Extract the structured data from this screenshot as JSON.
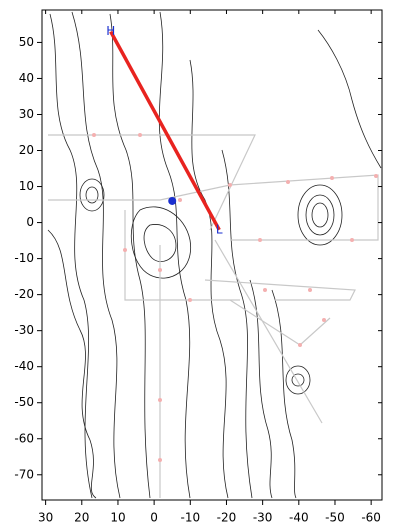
{
  "chart_data": {
    "type": "contour-map",
    "xlim": [
      31,
      -63
    ],
    "ylim": [
      -77,
      59
    ],
    "xticks": [
      30,
      20,
      10,
      0,
      -10,
      -20,
      -30,
      -40,
      -50,
      -60
    ],
    "yticks": [
      50,
      40,
      30,
      20,
      10,
      0,
      -10,
      -20,
      -30,
      -40,
      -50,
      -60,
      -70
    ],
    "line": {
      "x": [
        12,
        -18
      ],
      "y": [
        53,
        -2
      ],
      "color": "#e8231f"
    },
    "markers": [
      {
        "label": "H",
        "x": 12,
        "y": 53,
        "color": "#1a2fd0"
      },
      {
        "label": "L",
        "x": -18,
        "y": -2,
        "color": "#1a2fd0"
      }
    ],
    "point": {
      "x": -5,
      "y": 6,
      "color": "#1a2fd0"
    }
  }
}
